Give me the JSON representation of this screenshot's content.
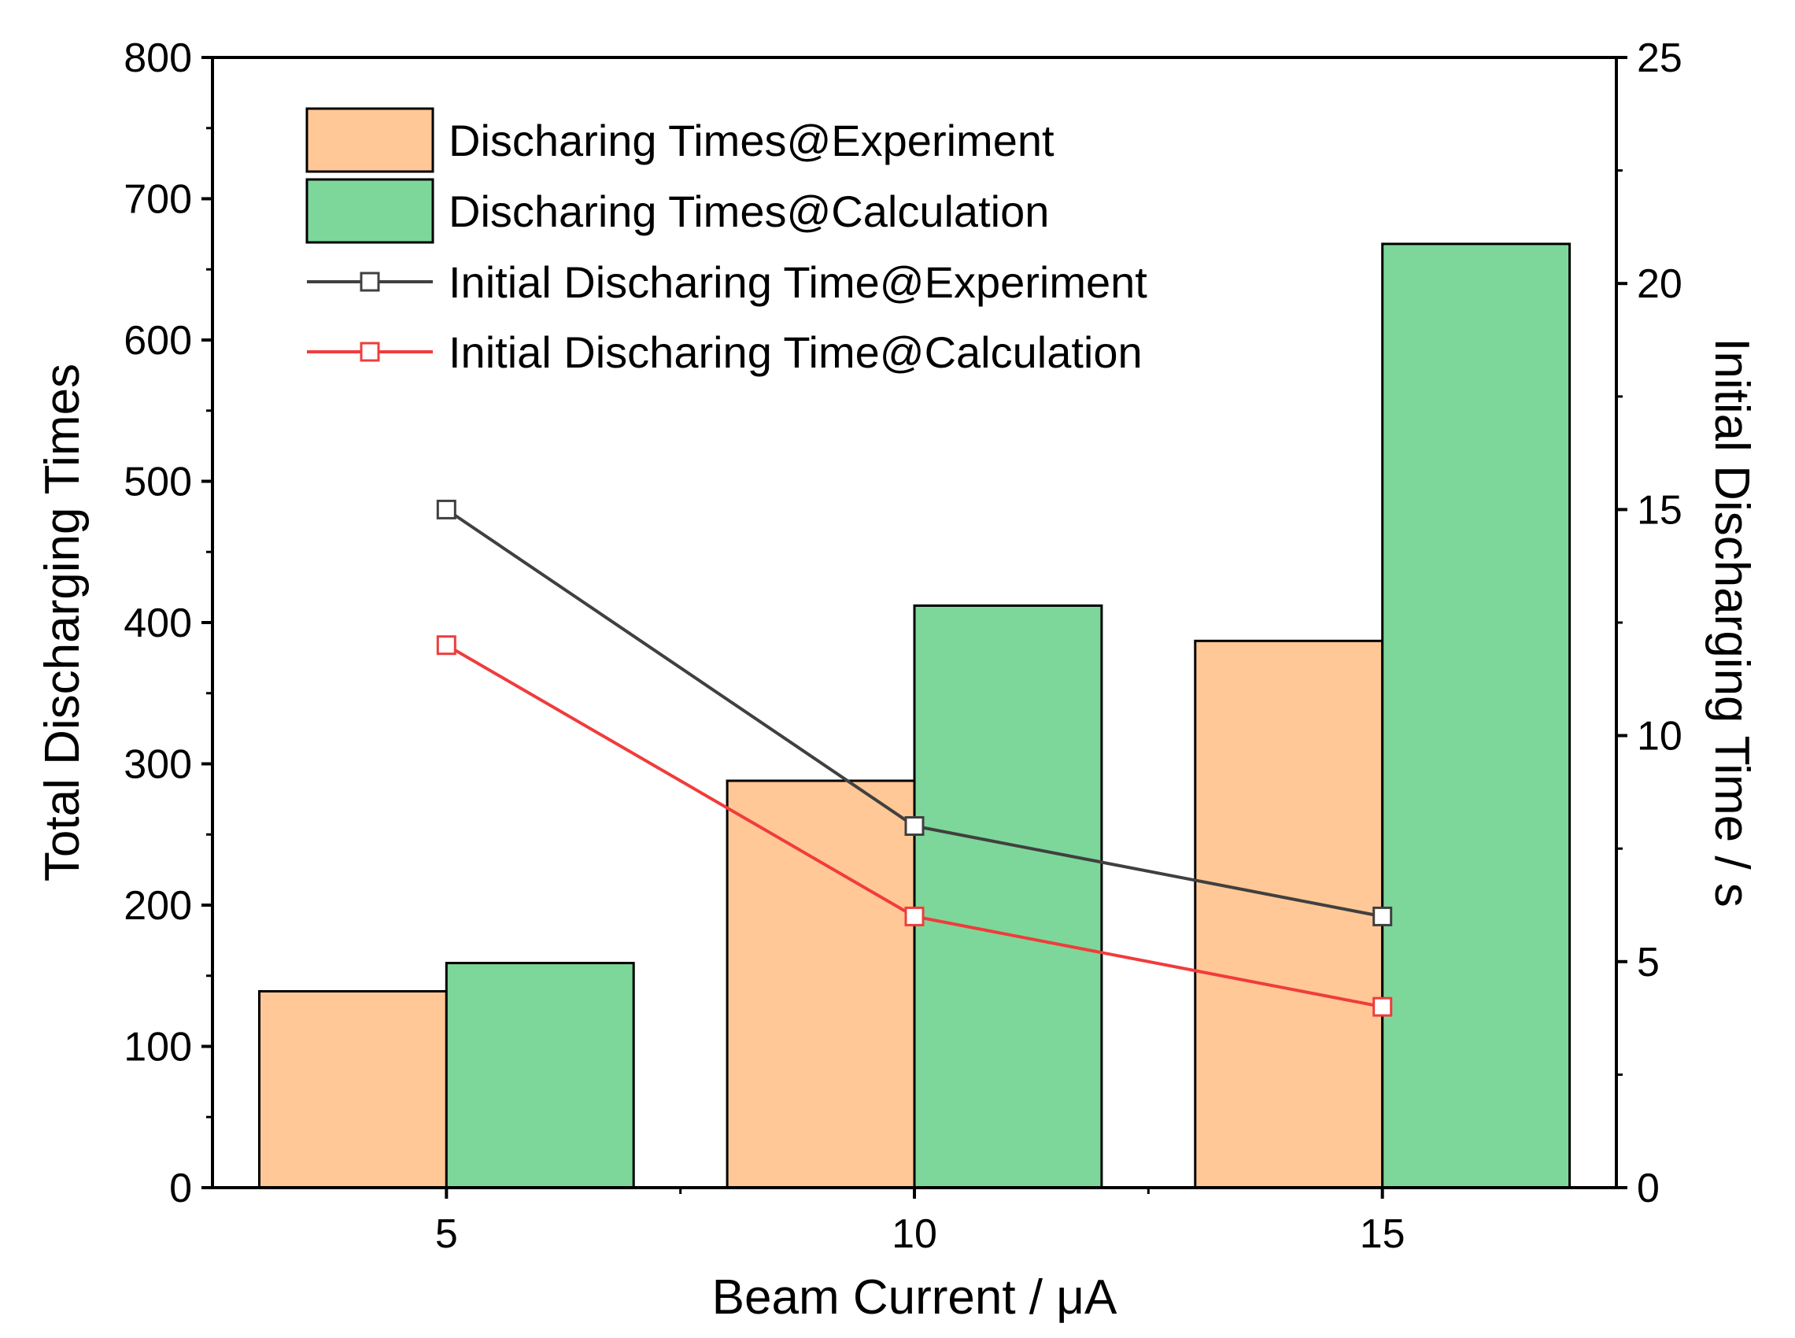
{
  "chart_data": {
    "type": "bar",
    "title": "",
    "xlabel": "Beam Current / μA",
    "ylabel": "Total Discharging Times",
    "y2label": "Initial Discharging Time / s",
    "x": [
      5,
      10,
      15
    ],
    "x_tick_labels": [
      "5",
      "10",
      "15"
    ],
    "xlim": [
      2.5,
      17.5
    ],
    "ylim": [
      0,
      800
    ],
    "y_ticks": [
      0,
      100,
      200,
      300,
      400,
      500,
      600,
      700,
      800
    ],
    "y_tick_labels": [
      "0",
      "100",
      "200",
      "300",
      "400",
      "500",
      "600",
      "700",
      "800"
    ],
    "y2lim": [
      0,
      25
    ],
    "y2_ticks": [
      0,
      5,
      10,
      15,
      20,
      25
    ],
    "y2_tick_labels": [
      "0",
      "5",
      "10",
      "15",
      "20",
      "25"
    ],
    "grid": false,
    "legend_position": "top-left",
    "series": [
      {
        "name": "Discharing Times@Experiment",
        "kind": "bar",
        "axis": "left",
        "color": "#ffc896",
        "values": [
          139,
          288,
          387
        ]
      },
      {
        "name": "Discharing Times@Calculation",
        "kind": "bar",
        "axis": "left",
        "color": "#7dd79a",
        "values": [
          159,
          412,
          668
        ]
      },
      {
        "name": "Initial Discharing Time@Experiment",
        "kind": "line",
        "axis": "right",
        "color": "#404040",
        "values": [
          15,
          8,
          6
        ]
      },
      {
        "name": "Initial Discharing Time@Calculation",
        "kind": "line",
        "axis": "right",
        "color": "#f03c3c",
        "values": [
          12,
          6,
          4
        ]
      }
    ]
  }
}
